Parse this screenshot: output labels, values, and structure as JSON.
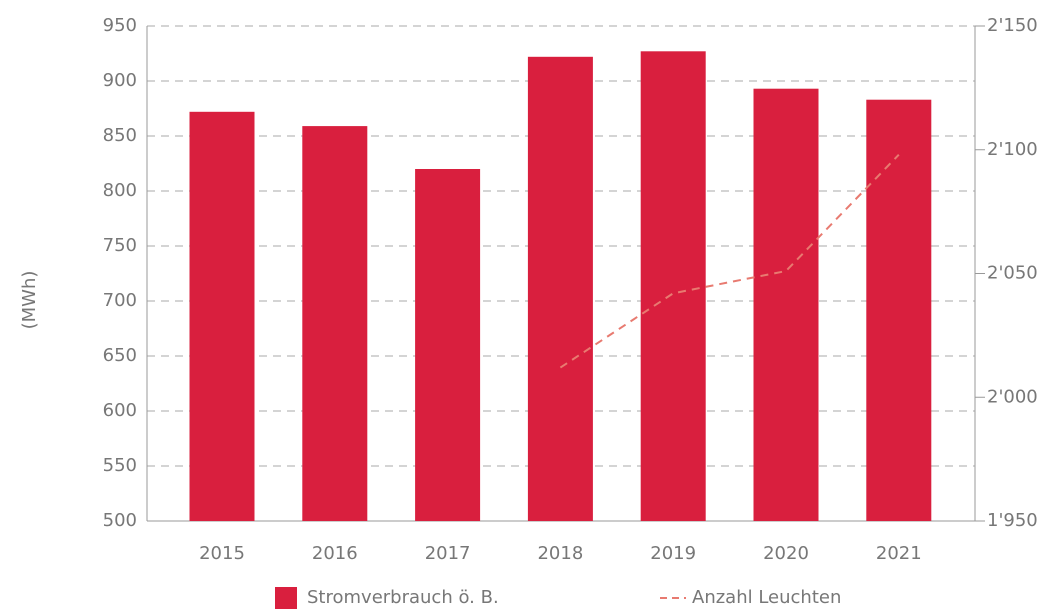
{
  "chart_data": {
    "type": "bar",
    "y_label": "(MWh)",
    "categories": [
      "2015",
      "2016",
      "2017",
      "2018",
      "2019",
      "2020",
      "2021"
    ],
    "series": [
      {
        "name": "Stromverbrauch ö. B.",
        "color": "#d91f3e",
        "type": "bar",
        "values": [
          872,
          859,
          820,
          922,
          927,
          893,
          883
        ]
      },
      {
        "name": "Anzahl Leuchten",
        "color": "#e87a70",
        "type": "line",
        "axis": "y2",
        "values": [
          null,
          null,
          null,
          2012,
          2042,
          2051,
          2098
        ]
      }
    ],
    "ylim": [
      500,
      950
    ],
    "yticks": [
      500,
      550,
      600,
      650,
      700,
      750,
      800,
      850,
      900,
      950
    ],
    "y2lim": [
      1950,
      2150
    ],
    "y2ticks": [
      {
        "value": 1950,
        "label": "1'950"
      },
      {
        "value": 2000,
        "label": "2'000"
      },
      {
        "value": 2050,
        "label": "2'050"
      },
      {
        "value": 2100,
        "label": "2'100"
      },
      {
        "value": 2150,
        "label": "2'150"
      }
    ],
    "grid": true,
    "legend": "bottom"
  }
}
